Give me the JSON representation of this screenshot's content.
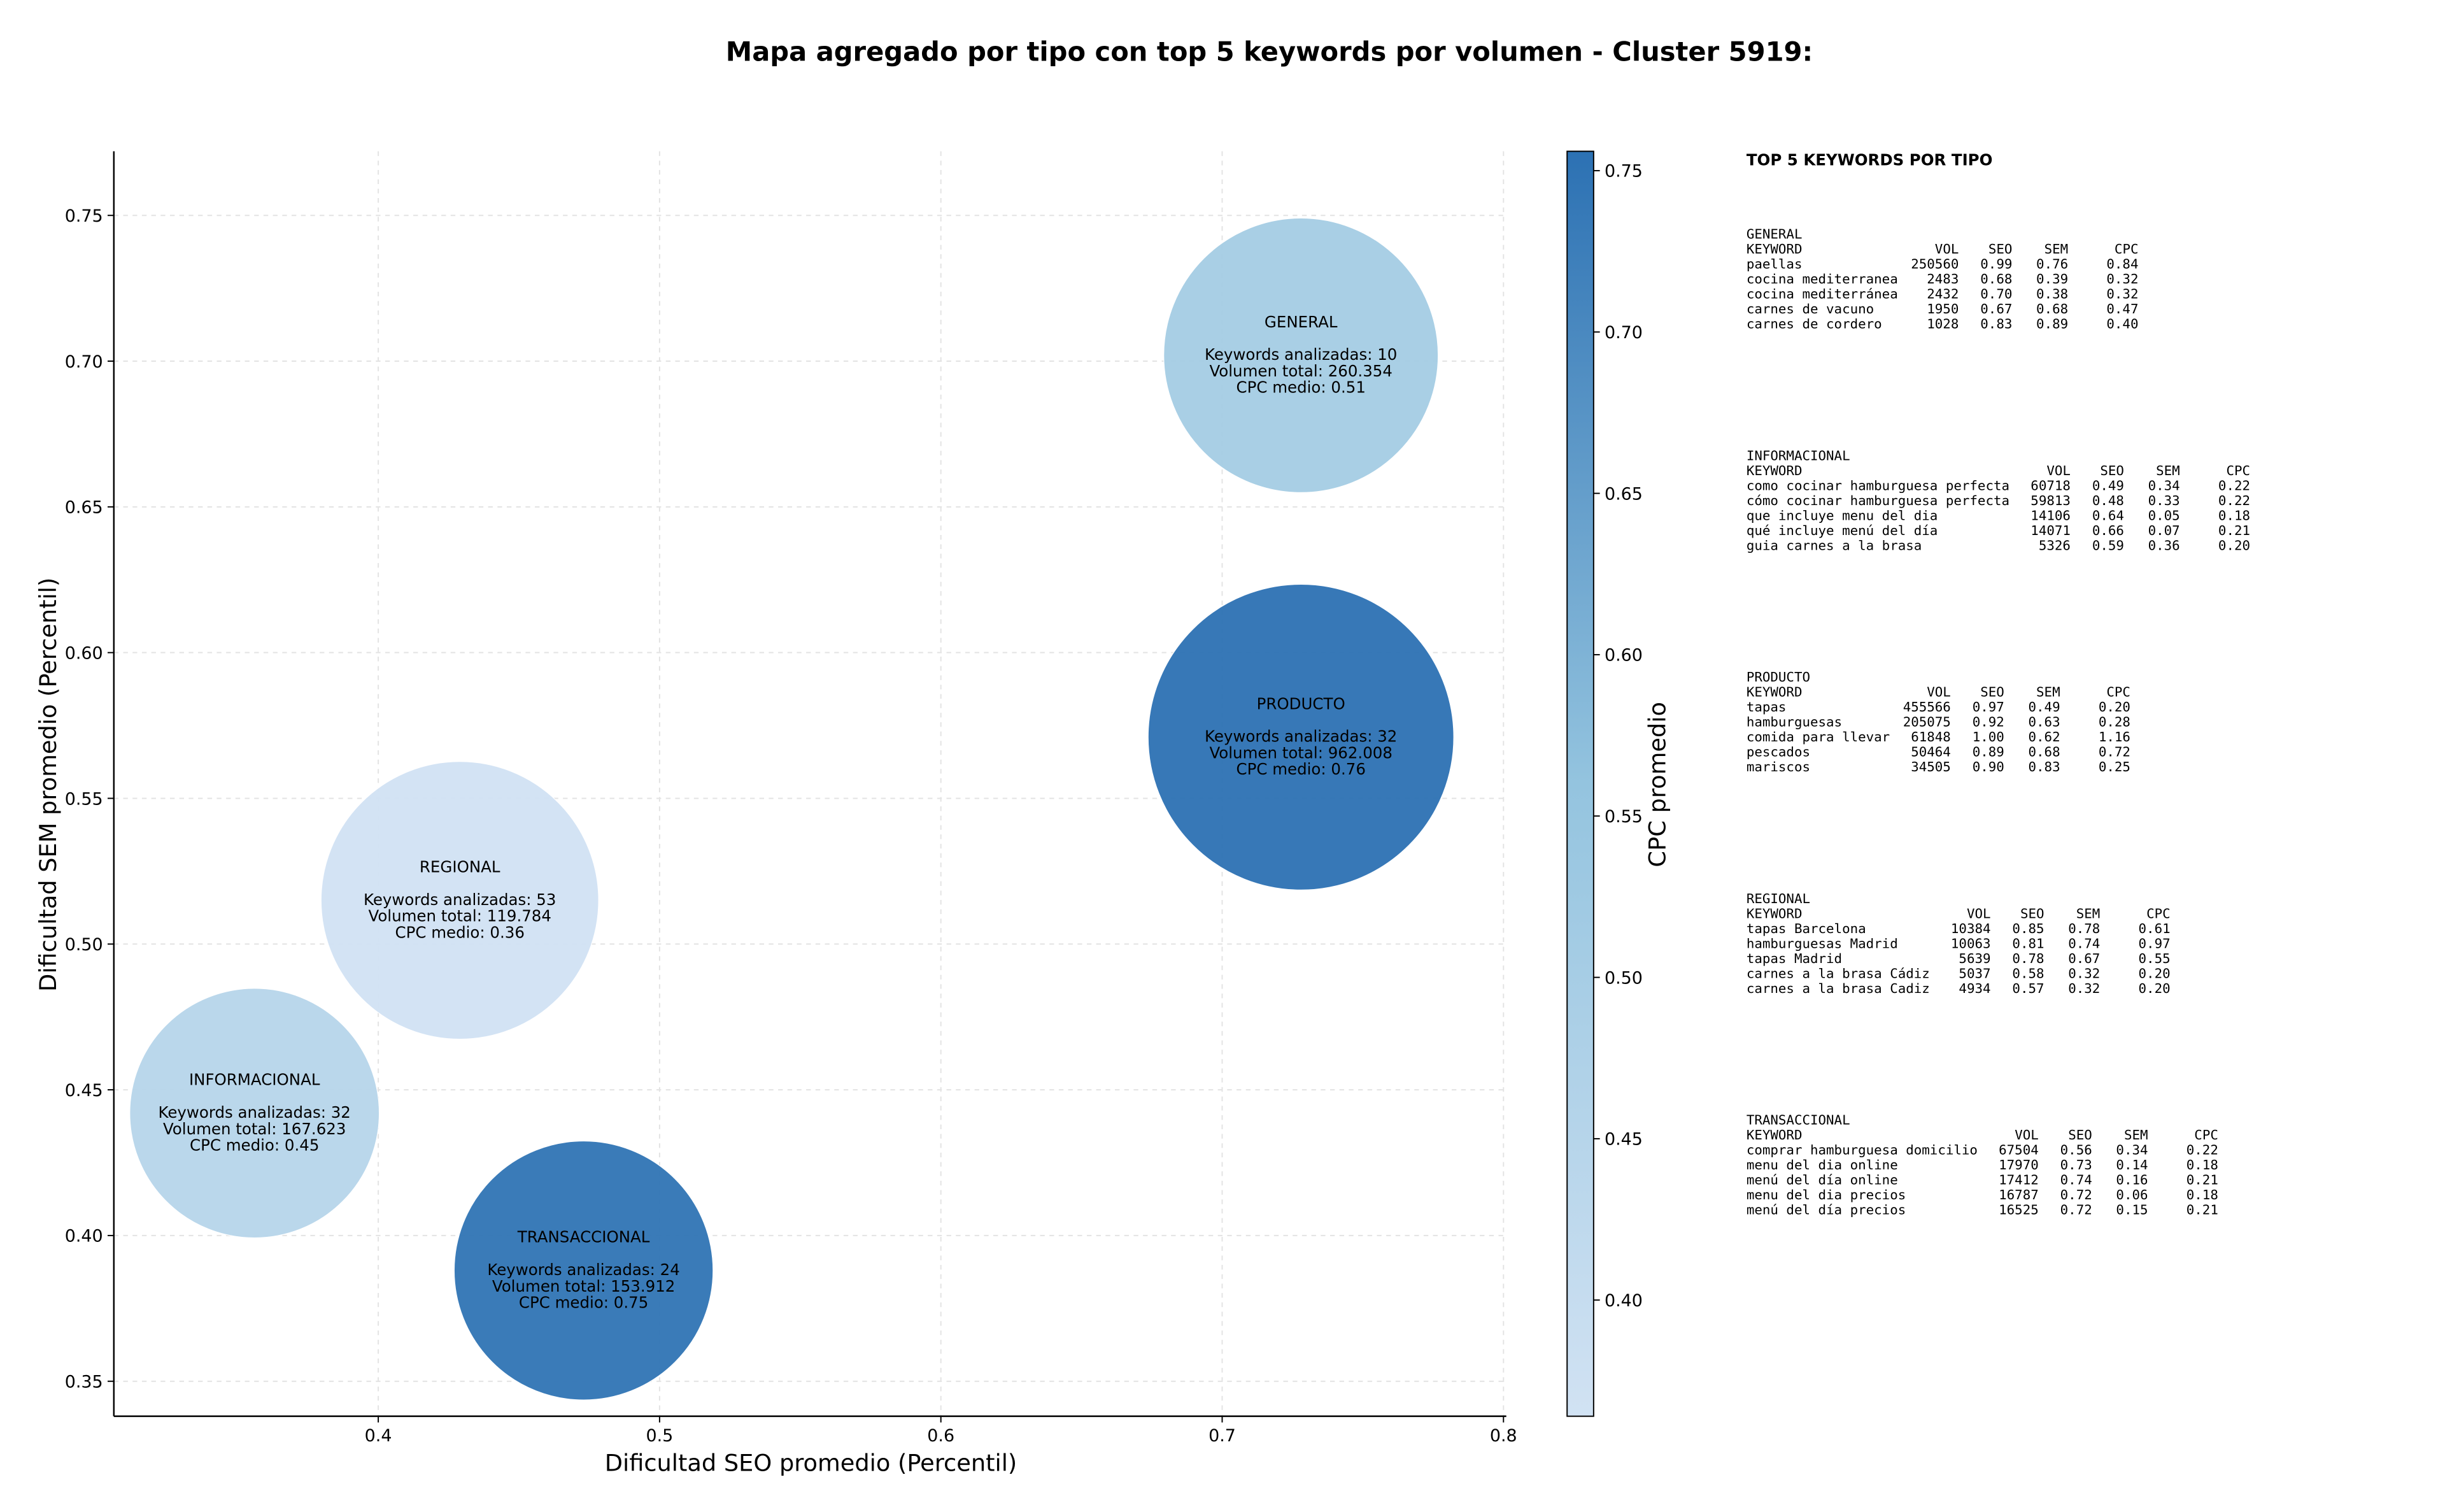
{
  "chart_data": {
    "type": "bubble",
    "title": "Mapa agregado por tipo con top 5 keywords por volumen - Cluster 5919:",
    "x_label": "Dificultad SEO promedio (Percentil)",
    "y_label": "Dificultad SEM promedio (Percentil)",
    "categories": [
      "GENERAL",
      "PRODUCTO",
      "REGIONAL",
      "INFORMACIONAL",
      "TRANSACCIONAL"
    ],
    "x": [
      0.728,
      0.728,
      0.429,
      0.356,
      0.473
    ],
    "values": [
      0.702,
      0.571,
      0.515,
      0.442,
      0.388
    ],
    "sizes": [
      88,
      98,
      89,
      80,
      83
    ],
    "color_values": [
      0.51,
      0.76,
      0.36,
      0.45,
      0.75
    ],
    "annotations": [
      [
        "Keywords analizadas: 10",
        "Volumen total: 260.354",
        "CPC medio: 0.51"
      ],
      [
        "Keywords analizadas: 32",
        "Volumen total: 962.008",
        "CPC medio: 0.76"
      ],
      [
        "Keywords analizadas: 53",
        "Volumen total: 119.784",
        "CPC medio: 0.36"
      ],
      [
        "Keywords analizadas: 32",
        "Volumen total: 167.623",
        "CPC medio: 0.45"
      ],
      [
        "Keywords analizadas: 24",
        "Volumen total: 153.912",
        "CPC medio: 0.75"
      ]
    ],
    "xlim": [
      0.306,
      0.801
    ],
    "ylim": [
      0.338,
      0.772
    ],
    "xticks": [
      0.4,
      0.5,
      0.6,
      0.7,
      0.8
    ],
    "yticks": [
      0.35,
      {
        "value": 0.4,
        "label": "0.40"
      },
      0.45,
      {
        "value": 0.5,
        "label": "0.50"
      },
      0.55,
      {
        "value": 0.6,
        "label": "0.60"
      },
      0.65,
      {
        "value": 0.7,
        "label": "0.70"
      },
      0.75
    ],
    "grid": true,
    "colorbar": {
      "label": "CPC promedio",
      "clim": [
        0.364,
        0.756
      ],
      "ticks": [
        {
          "value": 0.4,
          "label": "0.40"
        },
        0.45,
        {
          "value": 0.5,
          "label": "0.50"
        },
        0.55,
        {
          "value": 0.6,
          "label": "0.60"
        },
        0.65,
        {
          "value": 0.7,
          "label": "0.70"
        },
        0.75
      ],
      "colormap": [
        "#d1e2f3",
        "#94c4df",
        "#2c71b3"
      ]
    }
  },
  "side_panel": {
    "title": "TOP 5 KEYWORDS POR TIPO",
    "header": [
      "KEYWORD",
      "VOL",
      "SEO",
      "SEM",
      "CPC"
    ],
    "tables": [
      {
        "name": "GENERAL",
        "rows": [
          [
            "paellas",
            "250560",
            "0.99",
            "0.76",
            "0.84"
          ],
          [
            "cocina mediterranea",
            "2483",
            "0.68",
            "0.39",
            "0.32"
          ],
          [
            "cocina mediterránea",
            "2432",
            "0.70",
            "0.38",
            "0.32"
          ],
          [
            "carnes de vacuno",
            "1950",
            "0.67",
            "0.68",
            "0.47"
          ],
          [
            "carnes de cordero",
            "1028",
            "0.83",
            "0.89",
            "0.40"
          ]
        ]
      },
      {
        "name": "INFORMACIONAL",
        "rows": [
          [
            "como cocinar hamburguesa perfecta",
            "60718",
            "0.49",
            "0.34",
            "0.22"
          ],
          [
            "cómo cocinar hamburguesa perfecta",
            "59813",
            "0.48",
            "0.33",
            "0.22"
          ],
          [
            "que incluye menu del dia",
            "14106",
            "0.64",
            "0.05",
            "0.18"
          ],
          [
            "qué incluye menú del día",
            "14071",
            "0.66",
            "0.07",
            "0.21"
          ],
          [
            "guia carnes a la brasa",
            "5326",
            "0.59",
            "0.36",
            "0.20"
          ]
        ]
      },
      {
        "name": "PRODUCTO",
        "rows": [
          [
            "tapas",
            "455566",
            "0.97",
            "0.49",
            "0.20"
          ],
          [
            "hamburguesas",
            "205075",
            "0.92",
            "0.63",
            "0.28"
          ],
          [
            "comida para llevar",
            "61848",
            "1.00",
            "0.62",
            "1.16"
          ],
          [
            "pescados",
            "50464",
            "0.89",
            "0.68",
            "0.72"
          ],
          [
            "mariscos",
            "34505",
            "0.90",
            "0.83",
            "0.25"
          ]
        ]
      },
      {
        "name": "REGIONAL",
        "rows": [
          [
            "tapas Barcelona",
            "10384",
            "0.85",
            "0.78",
            "0.61"
          ],
          [
            "hamburguesas Madrid",
            "10063",
            "0.81",
            "0.74",
            "0.97"
          ],
          [
            "tapas Madrid",
            "5639",
            "0.78",
            "0.67",
            "0.55"
          ],
          [
            "carnes a la brasa Cádiz",
            "5037",
            "0.58",
            "0.32",
            "0.20"
          ],
          [
            "carnes a la brasa Cadiz",
            "4934",
            "0.57",
            "0.32",
            "0.20"
          ]
        ]
      },
      {
        "name": "TRANSACCIONAL",
        "rows": [
          [
            "comprar hamburguesa domicilio",
            "67504",
            "0.56",
            "0.34",
            "0.22"
          ],
          [
            "menu del dia online",
            "17970",
            "0.73",
            "0.14",
            "0.18"
          ],
          [
            "menú del día online",
            "17412",
            "0.74",
            "0.16",
            "0.21"
          ],
          [
            "menu del dia precios",
            "16787",
            "0.72",
            "0.06",
            "0.18"
          ],
          [
            "menú del día precios",
            "16525",
            "0.72",
            "0.15",
            "0.21"
          ]
        ]
      }
    ]
  }
}
